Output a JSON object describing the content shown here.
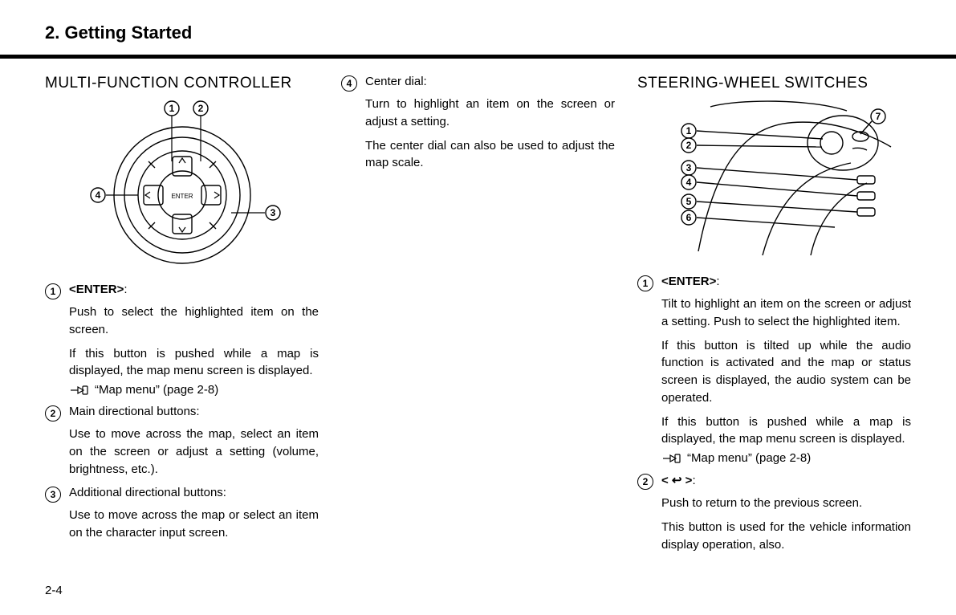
{
  "chapter_title": "2. Getting Started",
  "page_number": "2-4",
  "col1": {
    "heading": "MULTI-FUNCTION CONTROLLER",
    "fig": {
      "callouts": [
        "1",
        "2",
        "3",
        "4"
      ],
      "enter_text": "ENTER",
      "stroke": "#000000",
      "bg": "#ffffff",
      "line_w": 1.4
    },
    "items": [
      {
        "n": "1",
        "label_html": "<b>&lt;ENTER&gt;</b>:",
        "paras": [
          "Push to select the highlighted item on the screen.",
          "If this button is pushed while a map is displayed, the map menu screen is displayed."
        ],
        "ref": "“Map menu” (page 2-8)"
      },
      {
        "n": "2",
        "label_html": "Main directional buttons:",
        "paras": [
          "Use to move across the map, select an item on the screen or adjust a setting (volume, brightness, etc.)."
        ]
      },
      {
        "n": "3",
        "label_html": "Additional directional buttons:",
        "paras": [
          "Use to move across the map or select an item on the character input screen."
        ]
      }
    ]
  },
  "col2": {
    "items": [
      {
        "n": "4",
        "label_html": "Center dial:",
        "paras": [
          "Turn to highlight an item on the screen or adjust a setting.",
          "The center dial can also be used to adjust the map scale."
        ]
      }
    ]
  },
  "col3": {
    "heading": "STEERING-WHEEL SWITCHES",
    "fig": {
      "callouts": [
        "1",
        "2",
        "3",
        "4",
        "5",
        "6",
        "7"
      ],
      "stroke": "#000000",
      "bg": "#ffffff",
      "line_w": 1.4
    },
    "items": [
      {
        "n": "1",
        "label_html": "<b>&lt;ENTER&gt;</b>:",
        "paras": [
          "Tilt to highlight an item on the screen or adjust a setting. Push to select the highlighted item.",
          "If this button is tilted up while the audio function is activated and the map or status screen is displayed, the audio system can be operated.",
          "If this button is pushed while a map is displayed, the map menu screen is displayed."
        ],
        "ref": "“Map menu” (page 2-8)"
      },
      {
        "n": "2",
        "label_html": "<b>&lt; &#x21A9; &gt;</b>:",
        "paras": [
          "Push to return to the previous screen.",
          "This button is used for the vehicle information display operation, also."
        ]
      }
    ]
  }
}
